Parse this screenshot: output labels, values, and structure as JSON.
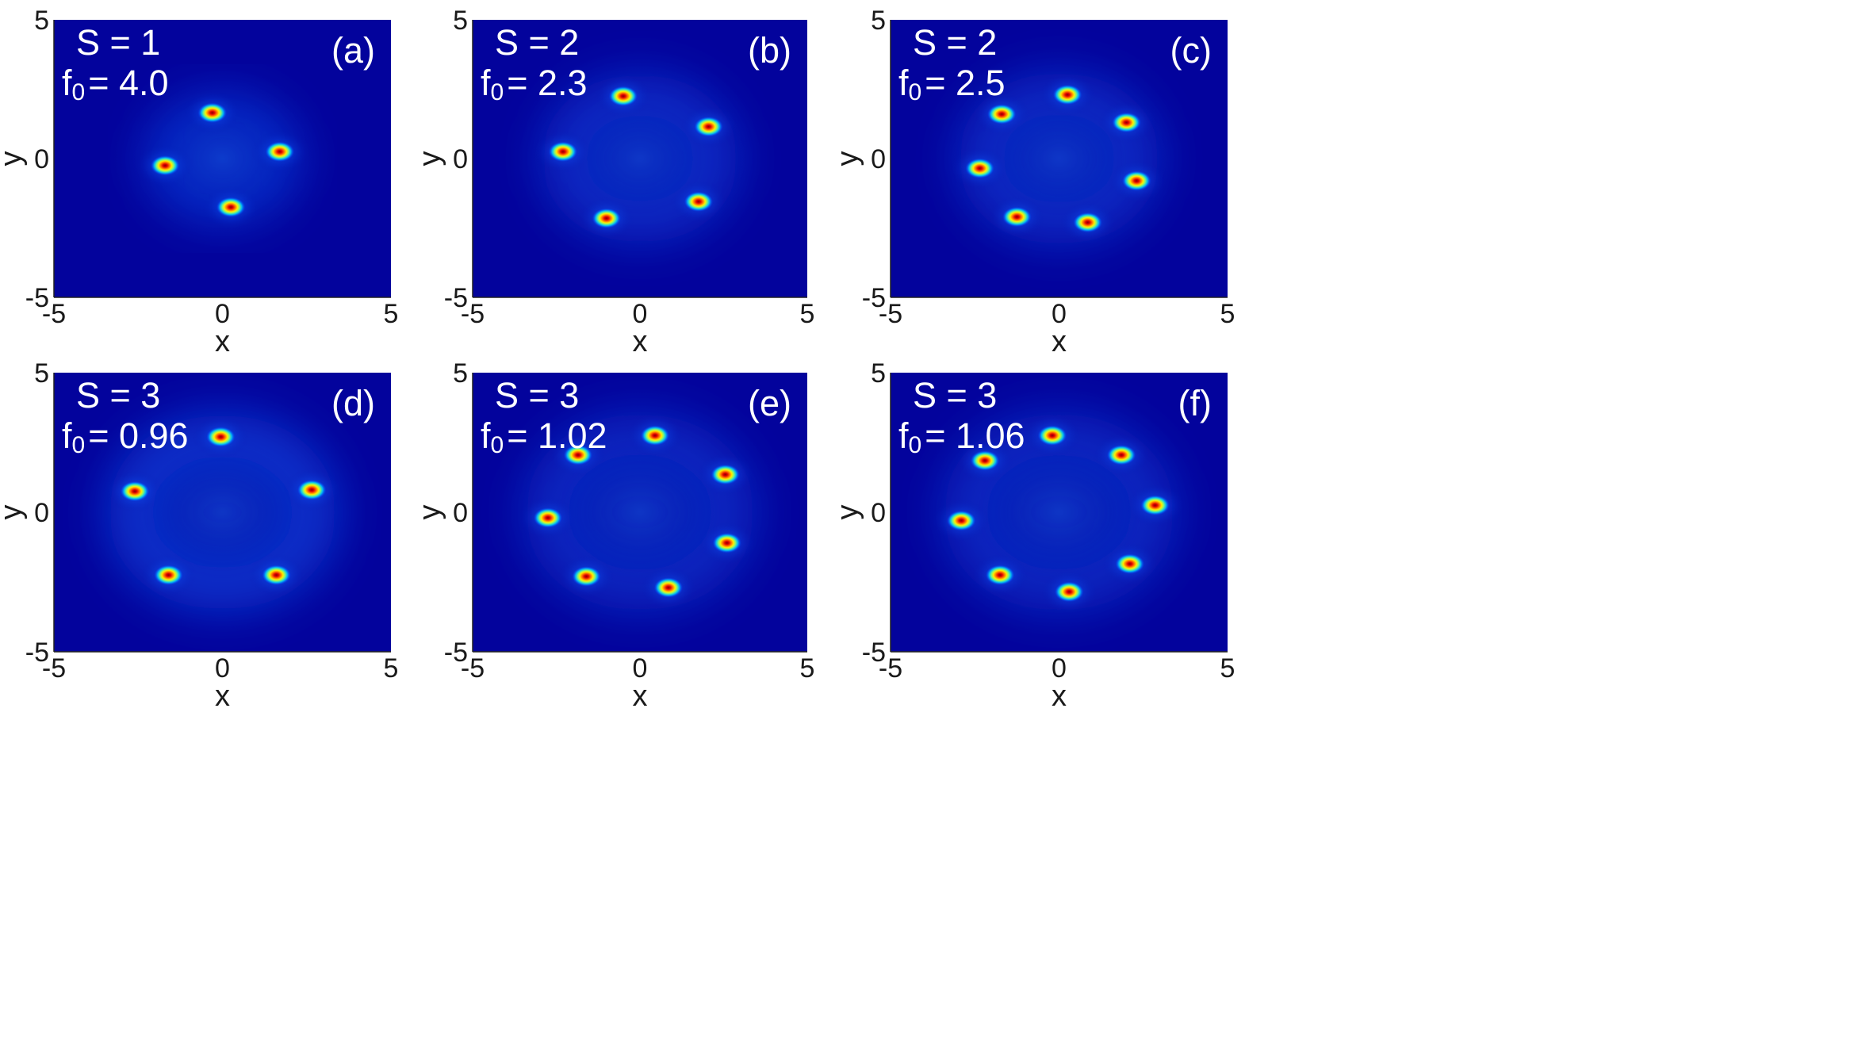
{
  "chart_data": [
    {
      "type": "heatmap",
      "panel": "(a)",
      "S": "S = 1",
      "f0": "= 4.0",
      "xlabel": "x",
      "ylabel": "y",
      "xlim": [
        -5,
        5
      ],
      "ylim": [
        -5,
        5
      ],
      "xticks": [
        "-5",
        "0",
        "5"
      ],
      "yticks": [
        "-5",
        "0",
        "5"
      ],
      "background": "#03039c",
      "ring_radius": 1.7,
      "ring_strength": 0.25,
      "peaks": [
        [
          -0.3,
          1.65
        ],
        [
          1.7,
          0.25
        ],
        [
          0.25,
          -1.75
        ],
        [
          -1.7,
          -0.25
        ]
      ]
    },
    {
      "type": "heatmap",
      "panel": "(b)",
      "S": "S = 2",
      "f0": "= 2.3",
      "xlabel": "x",
      "ylabel": "y",
      "xlim": [
        -5,
        5
      ],
      "ylim": [
        -5,
        5
      ],
      "xticks": [
        "-5",
        "0",
        "5"
      ],
      "yticks": [
        "-5",
        "0",
        "5"
      ],
      "background": "#03039c",
      "ring_radius": 2.3,
      "ring_strength": 0.3,
      "peaks": [
        [
          -0.5,
          2.25
        ],
        [
          2.05,
          1.15
        ],
        [
          1.75,
          -1.55
        ],
        [
          -1.0,
          -2.15
        ],
        [
          -2.3,
          0.25
        ]
      ]
    },
    {
      "type": "heatmap",
      "panel": "(c)",
      "S": "S = 2",
      "f0": "= 2.5",
      "xlabel": "x",
      "ylabel": "y",
      "xlim": [
        -5,
        5
      ],
      "ylim": [
        -5,
        5
      ],
      "xticks": [
        "-5",
        "0",
        "5"
      ],
      "yticks": [
        "-5",
        "0",
        "5"
      ],
      "background": "#03039c",
      "ring_radius": 2.35,
      "ring_strength": 0.3,
      "peaks": [
        [
          0.25,
          2.3
        ],
        [
          2.0,
          1.3
        ],
        [
          2.3,
          -0.8
        ],
        [
          0.85,
          -2.3
        ],
        [
          -1.25,
          -2.1
        ],
        [
          -2.35,
          -0.35
        ],
        [
          -1.7,
          1.6
        ]
      ]
    },
    {
      "type": "heatmap",
      "panel": "(d)",
      "S": "S = 3",
      "f0": "= 0.96",
      "xlabel": "x",
      "ylabel": "y",
      "xlim": [
        -5,
        5
      ],
      "ylim": [
        -5,
        5
      ],
      "xticks": [
        "-5",
        "0",
        "5"
      ],
      "yticks": [
        "-5",
        "0",
        "5"
      ],
      "background": "#03039c",
      "ring_radius": 2.75,
      "ring_strength": 0.45,
      "peaks": [
        [
          -0.05,
          2.7
        ],
        [
          2.65,
          0.8
        ],
        [
          1.6,
          -2.25
        ],
        [
          -1.6,
          -2.25
        ],
        [
          -2.6,
          0.75
        ]
      ]
    },
    {
      "type": "heatmap",
      "panel": "(e)",
      "S": "S = 3",
      "f0": "= 1.02",
      "xlabel": "x",
      "ylabel": "y",
      "xlim": [
        -5,
        5
      ],
      "ylim": [
        -5,
        5
      ],
      "xticks": [
        "-5",
        "0",
        "5"
      ],
      "yticks": [
        "-5",
        "0",
        "5"
      ],
      "background": "#03039c",
      "ring_radius": 2.8,
      "ring_strength": 0.3,
      "peaks": [
        [
          0.45,
          2.75
        ],
        [
          2.55,
          1.35
        ],
        [
          2.6,
          -1.1
        ],
        [
          0.85,
          -2.7
        ],
        [
          -1.6,
          -2.3
        ],
        [
          -2.75,
          -0.2
        ],
        [
          -1.85,
          2.05
        ]
      ]
    },
    {
      "type": "heatmap",
      "panel": "(f)",
      "S": "S = 3",
      "f0": "= 1.06",
      "xlabel": "x",
      "ylabel": "y",
      "xlim": [
        -5,
        5
      ],
      "ylim": [
        -5,
        5
      ],
      "xticks": [
        "-5",
        "0",
        "5"
      ],
      "yticks": [
        "-5",
        "0",
        "5"
      ],
      "background": "#03039c",
      "ring_radius": 2.8,
      "ring_strength": 0.3,
      "peaks": [
        [
          -0.2,
          2.75
        ],
        [
          1.85,
          2.05
        ],
        [
          2.85,
          0.25
        ],
        [
          2.1,
          -1.85
        ],
        [
          0.3,
          -2.85
        ],
        [
          -1.75,
          -2.25
        ],
        [
          -2.9,
          -0.3
        ],
        [
          -2.2,
          1.85
        ]
      ]
    }
  ]
}
